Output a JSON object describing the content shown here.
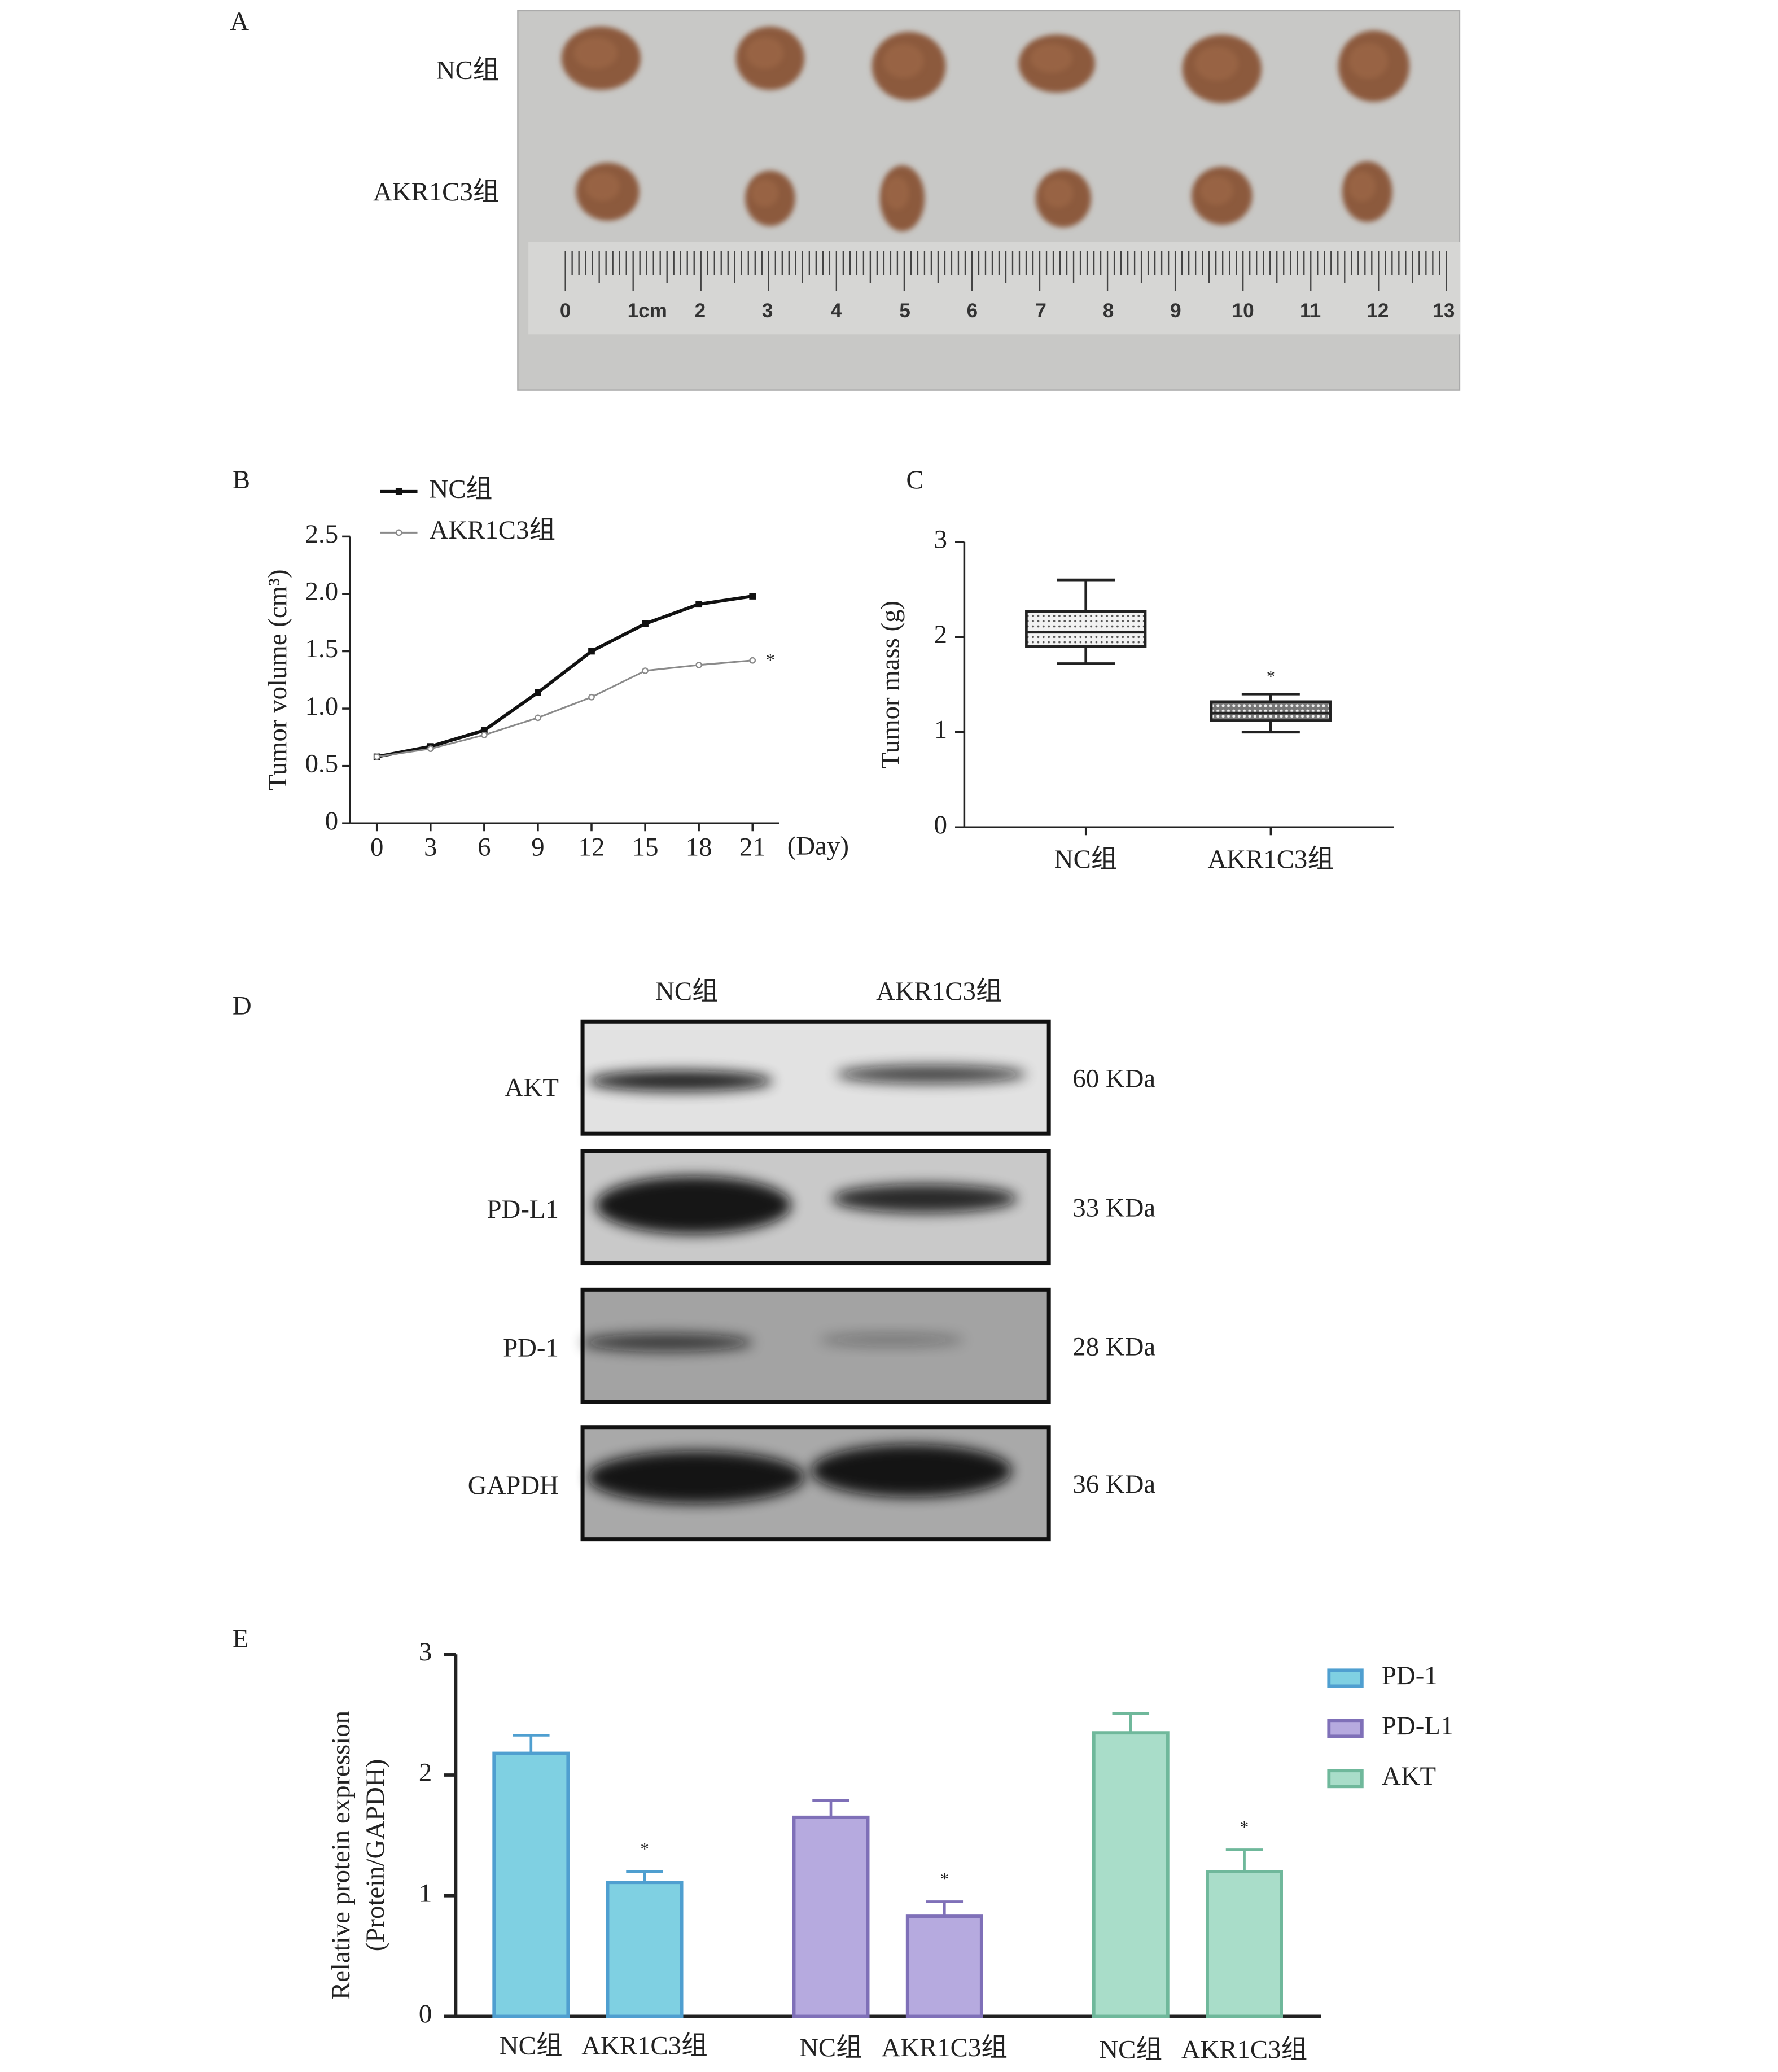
{
  "photo": {
    "label": "A",
    "rows": [
      "NC组",
      "AKR1C3组"
    ],
    "ruler_labels": [
      "0",
      "1cm",
      "2",
      "3",
      "4",
      "5",
      "6",
      "7",
      "8",
      "9",
      "10",
      "11",
      "12",
      "13"
    ]
  },
  "chart_data": [
    {
      "type": "line",
      "panel": "B",
      "ylabel": "Tumor volume (cm³)",
      "xlabel": "(Day)",
      "x": [
        0,
        3,
        6,
        9,
        12,
        15,
        18,
        21
      ],
      "xlim": [
        -1.5,
        22.5
      ],
      "xticks": [
        0,
        3,
        6,
        9,
        12,
        15,
        18,
        21
      ],
      "ylim": [
        0,
        2.5
      ],
      "yticks": [
        0,
        0.5,
        {
          "value": 1,
          "label": "1.0"
        },
        1.5,
        {
          "value": 2,
          "label": "2.0"
        },
        2.5
      ],
      "legend": "upper left",
      "annotation": "*",
      "series": [
        {
          "name": "NC组",
          "color": "#111111",
          "values": [
            0.58,
            0.67,
            0.81,
            1.14,
            1.5,
            1.74,
            1.91,
            1.98
          ]
        },
        {
          "name": "AKR1C3组",
          "color": "#8a8a8a",
          "values": [
            0.58,
            0.65,
            0.77,
            0.92,
            1.1,
            1.33,
            1.38,
            1.42
          ]
        }
      ]
    },
    {
      "type": "box",
      "panel": "C",
      "ylabel": "Tumor mass (g)",
      "categories": [
        "NC组",
        "AKR1C3组"
      ],
      "ylim": [
        0,
        3
      ],
      "yticks": [
        0,
        1,
        2,
        3
      ],
      "boxes": [
        {
          "min": 1.72,
          "q1": 1.9,
          "median": 2.05,
          "q3": 2.27,
          "max": 2.6
        },
        {
          "min": 1.0,
          "q1": 1.12,
          "median": 1.2,
          "q3": 1.32,
          "max": 1.4
        }
      ],
      "annotation": {
        "text": "*",
        "category": "AKR1C3组"
      }
    },
    {
      "type": "bar",
      "panel": "E",
      "ylabel": [
        "Relative protein expression",
        "(Protein/GAPDH)"
      ],
      "categories": [
        "NC组",
        "AKR1C3组"
      ],
      "ylim": [
        0,
        3
      ],
      "yticks": [
        0,
        1,
        2,
        3
      ],
      "legend": "upper right",
      "series": [
        {
          "name": "PD-1",
          "color": "#7fd0e2",
          "edgecolor": "#4f9fd0",
          "values": [
            2.18,
            1.11
          ],
          "errors": [
            0.15,
            0.09
          ],
          "marks": [
            null,
            "*"
          ]
        },
        {
          "name": "PD-L1",
          "color": "#b6aadf",
          "edgecolor": "#7f70b8",
          "values": [
            1.65,
            0.83
          ],
          "errors": [
            0.14,
            0.12
          ],
          "marks": [
            null,
            "*"
          ]
        },
        {
          "name": "AKT",
          "color": "#a9ddc9",
          "edgecolor": "#6fb89b",
          "values": [
            2.35,
            1.2
          ],
          "errors": [
            0.16,
            0.18
          ],
          "marks": [
            null,
            "*"
          ]
        }
      ]
    }
  ],
  "blot": {
    "label": "D",
    "columns": [
      "NC组",
      "AKR1C3组"
    ],
    "rows": [
      {
        "name": "AKT",
        "size": "60 KDa"
      },
      {
        "name": "PD-L1",
        "size": "33 KDa"
      },
      {
        "name": "PD-1",
        "size": "28 KDa"
      },
      {
        "name": "GAPDH",
        "size": "36 KDa"
      }
    ]
  }
}
